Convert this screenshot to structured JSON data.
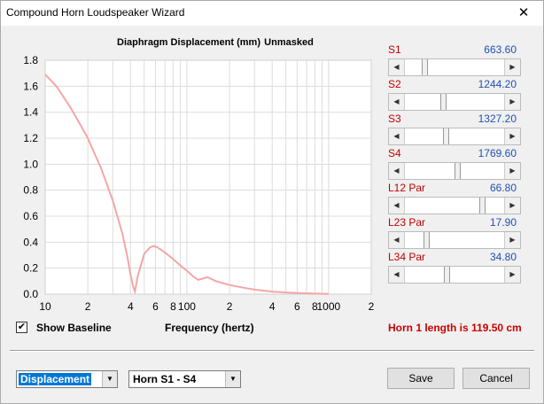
{
  "window": {
    "title": "Compound Horn Loudspeaker Wizard",
    "close_glyph": "✕"
  },
  "chart_data": {
    "type": "line",
    "title": "Diaphragm Displacement (mm)",
    "subtitle": "Unmasked",
    "xlabel": "Frequency (hertz)",
    "ylabel": "",
    "x_scale": "log",
    "xlim": [
      10,
      2000
    ],
    "ylim": [
      0,
      1.8
    ],
    "yticks": [
      0.0,
      0.2,
      0.4,
      0.6,
      0.8,
      1.0,
      1.2,
      1.4,
      1.6,
      1.8
    ],
    "ytick_labels": [
      "0.0",
      "0.2",
      "0.4",
      "0.6",
      "0.8",
      "1.0",
      "1.2",
      "1.4",
      "1.6",
      "1.8"
    ],
    "xtick_values": [
      10,
      20,
      40,
      60,
      80,
      100,
      200,
      400,
      600,
      800,
      1000,
      2000
    ],
    "xtick_labels": [
      "10",
      "2",
      "4",
      "6",
      "8",
      "100",
      "2",
      "4",
      "6",
      "8",
      "1000",
      "2"
    ],
    "grid": true,
    "line_color": "#f4a6a6",
    "series": [
      {
        "x": [
          10,
          12,
          15,
          18,
          20,
          25,
          30,
          35,
          38,
          40,
          42,
          43,
          45,
          50,
          55,
          58,
          62,
          70,
          80,
          90,
          100,
          110,
          120,
          140,
          160,
          200,
          250,
          300,
          400,
          500,
          700,
          900,
          1000
        ],
        "values": [
          1.69,
          1.6,
          1.44,
          1.29,
          1.2,
          0.96,
          0.72,
          0.47,
          0.29,
          0.15,
          0.05,
          0.02,
          0.14,
          0.31,
          0.36,
          0.37,
          0.36,
          0.32,
          0.27,
          0.22,
          0.18,
          0.14,
          0.11,
          0.13,
          0.1,
          0.07,
          0.05,
          0.035,
          0.02,
          0.013,
          0.006,
          0.003,
          0.002
        ]
      }
    ]
  },
  "sliders": [
    {
      "label": "S1",
      "value": "663.60",
      "fraction": 0.18
    },
    {
      "label": "S2",
      "value": "1244.20",
      "fraction": 0.38
    },
    {
      "label": "S3",
      "value": "1327.20",
      "fraction": 0.41
    },
    {
      "label": "S4",
      "value": "1769.60",
      "fraction": 0.53
    },
    {
      "label": "L12  Par",
      "value": "66.80",
      "fraction": 0.8
    },
    {
      "label": "L23  Par",
      "value": "17.90",
      "fraction": 0.2
    },
    {
      "label": "L34  Par",
      "value": "34.80",
      "fraction": 0.42
    }
  ],
  "baseline": {
    "label": "Show Baseline",
    "checked": true,
    "check_glyph": "✔"
  },
  "horn_length_text": "Horn 1 length is 119.50 cm",
  "horn_length_color": "#cc0000",
  "plot_select": {
    "value": "Displacement",
    "highlight": "#0078d7"
  },
  "horn_select": {
    "value": "Horn S1 - S4"
  },
  "buttons": {
    "save": "Save",
    "cancel": "Cancel"
  }
}
